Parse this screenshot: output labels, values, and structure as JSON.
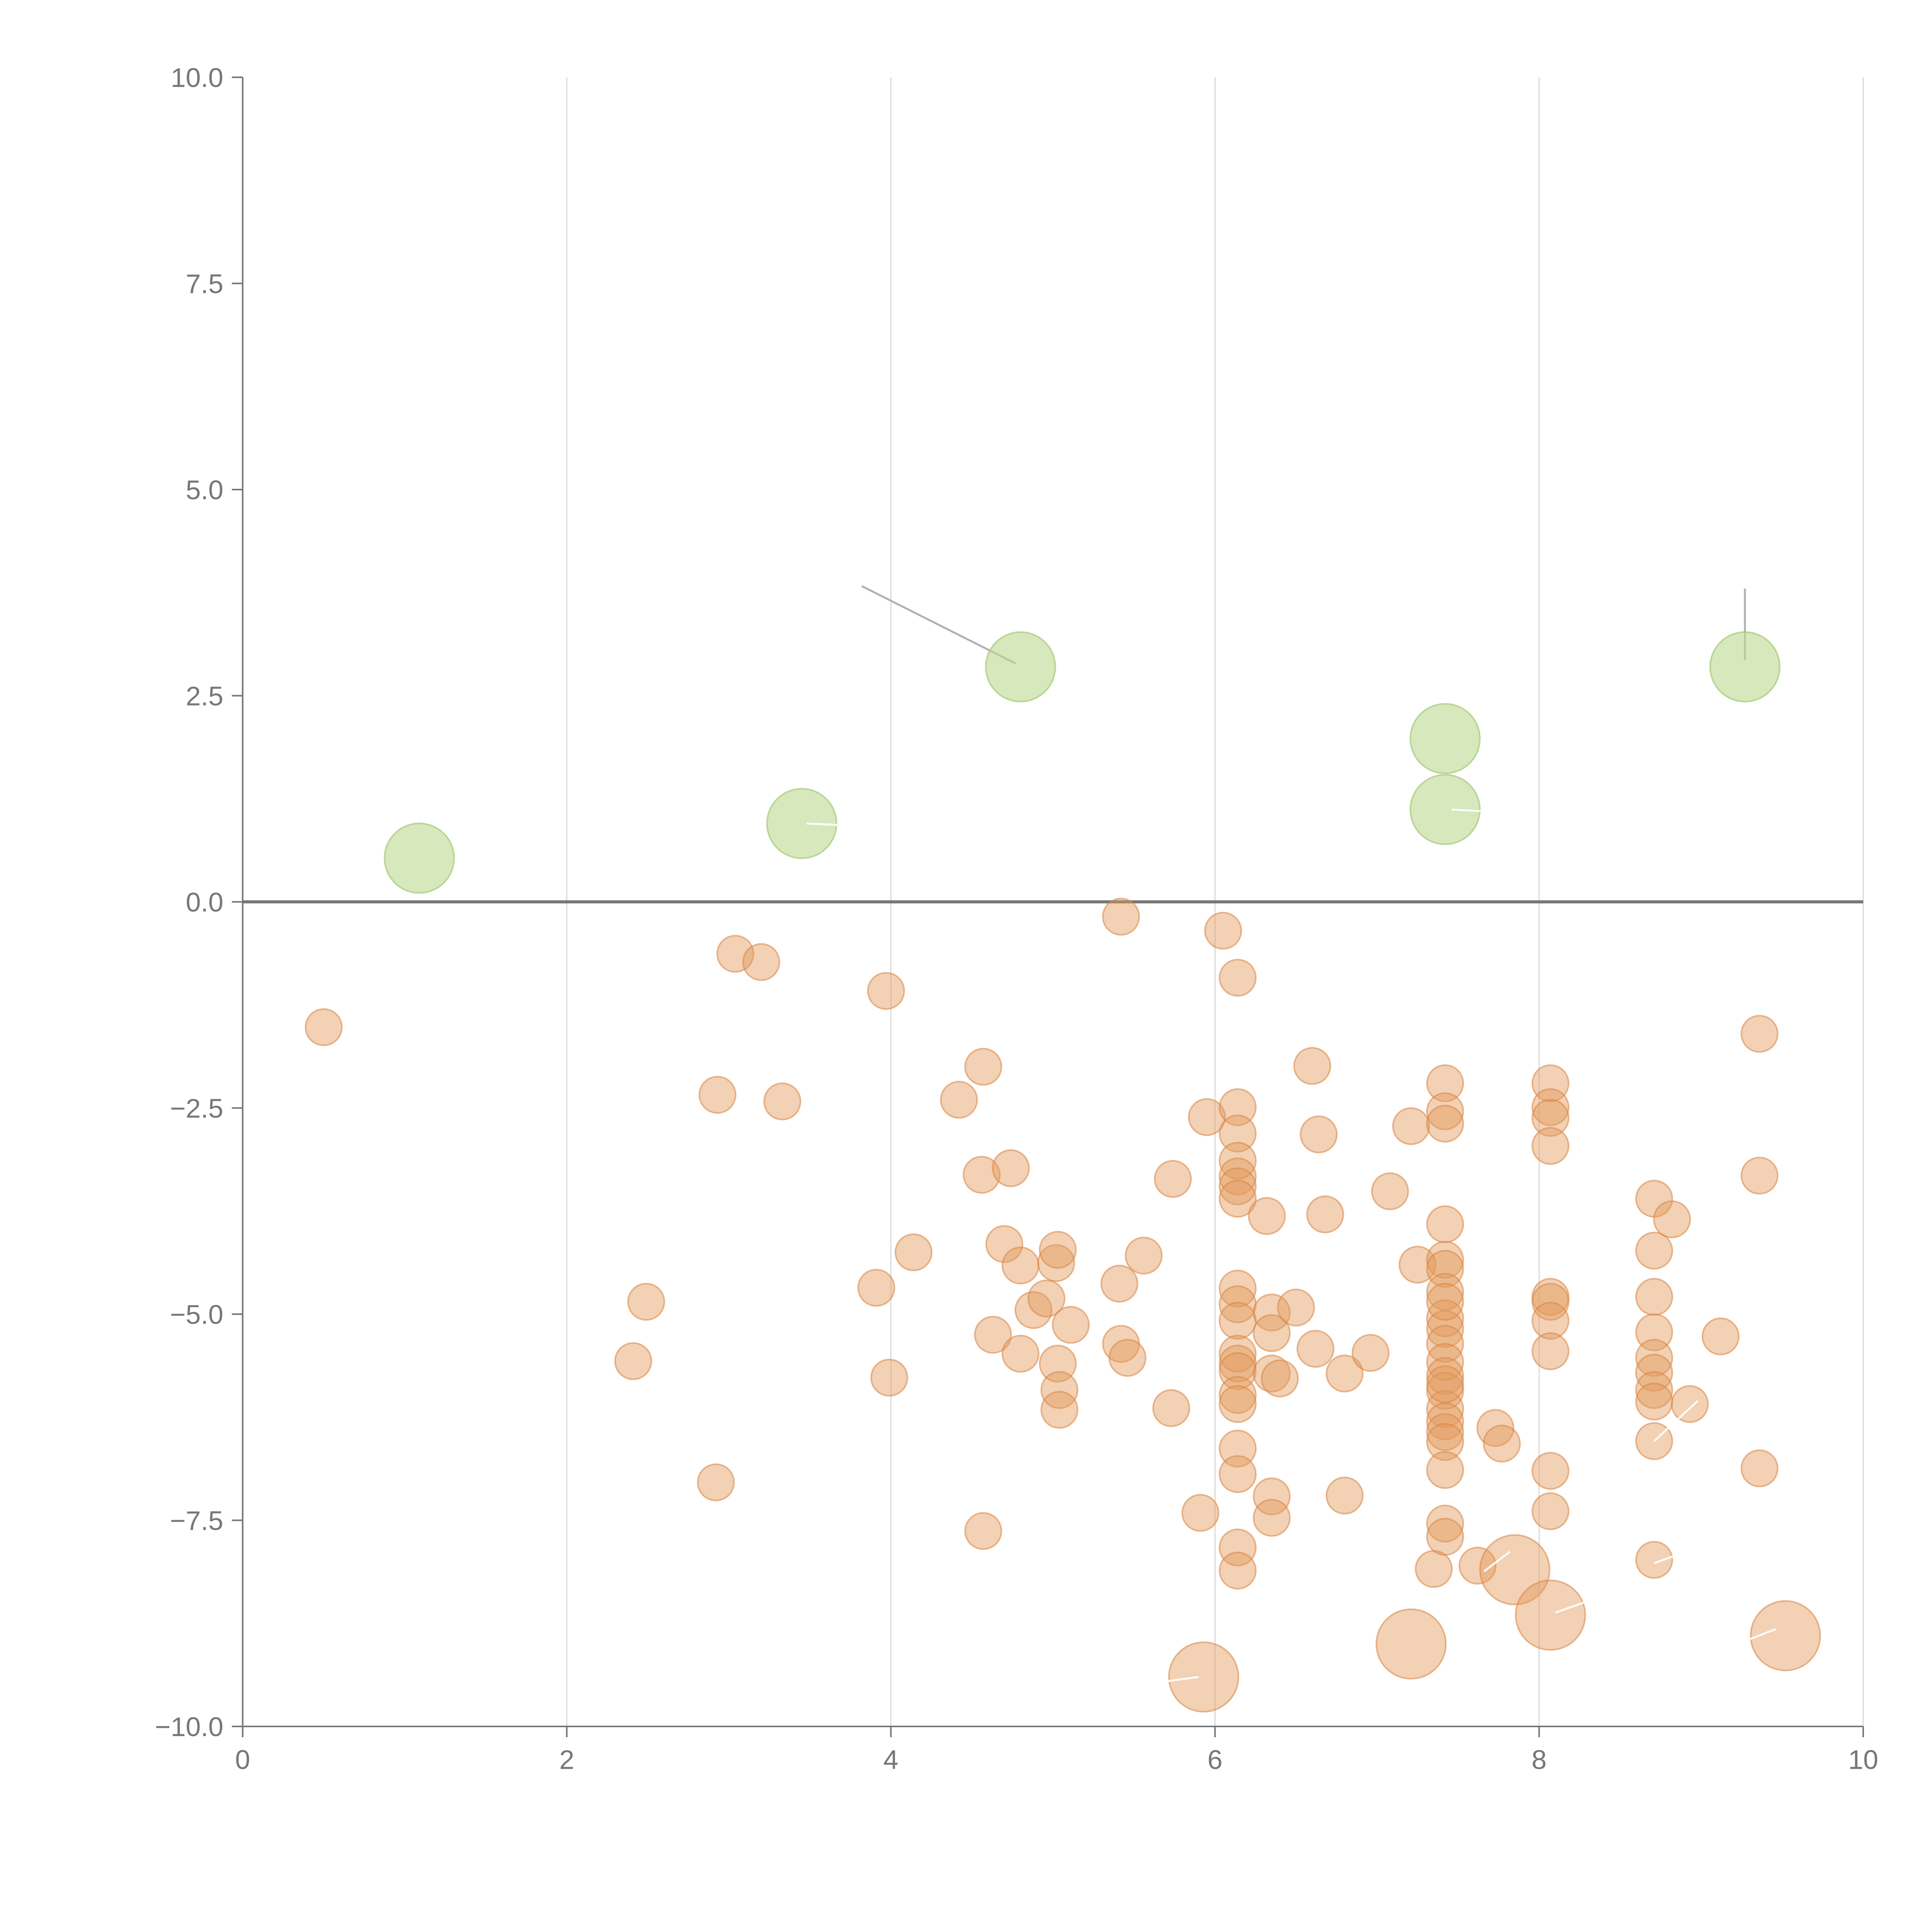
{
  "chart_data": {
    "type": "scatter",
    "subtype": "bubble",
    "title": "",
    "xlabel": "",
    "ylabel": "",
    "xlim": [
      0,
      10
    ],
    "ylim": [
      -10,
      10
    ],
    "xticks": [
      0,
      2,
      4,
      6,
      8,
      10
    ],
    "yticks": [
      -10,
      -7.5,
      -5,
      -2.5,
      0,
      2.5,
      5,
      7.5,
      10
    ],
    "xtick_labels": [
      "0",
      "2",
      "4",
      "6",
      "8",
      "10"
    ],
    "ytick_labels": [
      "−10.0",
      "−7.5",
      "−5.0",
      "−2.5",
      "0.0",
      "2.5",
      "5.0",
      "7.5",
      "10.0"
    ],
    "vertical_grid": true,
    "zero_line": true,
    "colors": {
      "positive": "#bcd98f",
      "negative": "#e39a5c",
      "axis": "#777777",
      "grid": "#d9d9d9"
    },
    "series": [
      {
        "name": "positive",
        "color": "#bcd98f",
        "size": "large",
        "points": [
          [
            1.09,
            0.53
          ],
          [
            3.45,
            0.95
          ],
          [
            4.8,
            2.85
          ],
          [
            7.42,
            1.98
          ],
          [
            7.42,
            1.12
          ],
          [
            9.27,
            2.85
          ]
        ]
      },
      {
        "name": "negative",
        "color": "#e39a5c",
        "size": "small",
        "points": [
          [
            0.5,
            -1.52
          ],
          [
            2.41,
            -5.57
          ],
          [
            2.49,
            -4.85
          ],
          [
            2.92,
            -7.04
          ],
          [
            2.93,
            -2.34
          ],
          [
            3.04,
            -0.63
          ],
          [
            3.2,
            -0.73
          ],
          [
            3.33,
            -2.42
          ],
          [
            3.91,
            -4.68
          ],
          [
            3.97,
            -1.08
          ],
          [
            3.99,
            -5.77
          ],
          [
            4.14,
            -4.25
          ],
          [
            4.42,
            -2.4
          ],
          [
            4.56,
            -3.31
          ],
          [
            4.57,
            -2.0
          ],
          [
            4.57,
            -7.63
          ],
          [
            4.63,
            -5.25
          ],
          [
            4.7,
            -4.15
          ],
          [
            4.74,
            -3.23
          ],
          [
            4.8,
            -5.48
          ],
          [
            4.8,
            -4.41
          ],
          [
            4.88,
            -4.95
          ],
          [
            4.96,
            -4.81
          ],
          [
            5.02,
            -4.38
          ],
          [
            5.03,
            -4.22
          ],
          [
            5.03,
            -5.6
          ],
          [
            5.04,
            -5.92
          ],
          [
            5.04,
            -6.16
          ],
          [
            5.11,
            -5.13
          ],
          [
            5.41,
            -4.63
          ],
          [
            5.42,
            -5.36
          ],
          [
            5.42,
            -0.18
          ],
          [
            5.46,
            -5.53
          ],
          [
            5.56,
            -4.29
          ],
          [
            5.73,
            -6.14
          ],
          [
            5.74,
            -3.36
          ],
          [
            5.91,
            -7.41
          ],
          [
            5.95,
            -2.61
          ],
          [
            6.05,
            -0.35
          ],
          [
            6.14,
            -0.92
          ],
          [
            6.14,
            -2.49
          ],
          [
            6.14,
            -2.81
          ],
          [
            6.14,
            -3.14
          ],
          [
            6.14,
            -3.33
          ],
          [
            6.14,
            -3.45
          ],
          [
            6.14,
            -3.6
          ],
          [
            6.14,
            -4.69
          ],
          [
            6.14,
            -4.88
          ],
          [
            6.14,
            -5.08
          ],
          [
            6.14,
            -5.48
          ],
          [
            6.14,
            -5.6
          ],
          [
            6.14,
            -5.69
          ],
          [
            6.14,
            -5.98
          ],
          [
            6.14,
            -6.09
          ],
          [
            6.14,
            -6.63
          ],
          [
            6.14,
            -6.94
          ],
          [
            6.14,
            -7.83
          ],
          [
            6.14,
            -8.11
          ],
          [
            6.32,
            -3.81
          ],
          [
            6.35,
            -4.98
          ],
          [
            6.35,
            -5.23
          ],
          [
            6.35,
            -7.21
          ],
          [
            6.35,
            -7.47
          ],
          [
            6.35,
            -5.72
          ],
          [
            6.4,
            -5.78
          ],
          [
            6.5,
            -4.92
          ],
          [
            6.6,
            -1.99
          ],
          [
            6.62,
            -5.42
          ],
          [
            6.64,
            -2.82
          ],
          [
            6.68,
            -3.79
          ],
          [
            6.8,
            -5.72
          ],
          [
            6.8,
            -7.2
          ],
          [
            6.96,
            -5.47
          ],
          [
            7.08,
            -3.51
          ],
          [
            7.21,
            -2.72
          ],
          [
            7.25,
            -4.4
          ],
          [
            7.35,
            -8.09
          ],
          [
            7.42,
            -2.2
          ],
          [
            7.42,
            -2.54
          ],
          [
            7.42,
            -2.69
          ],
          [
            7.42,
            -3.91
          ],
          [
            7.42,
            -4.34
          ],
          [
            7.42,
            -4.45
          ],
          [
            7.42,
            -4.73
          ],
          [
            7.42,
            -5.05
          ],
          [
            7.42,
            -5.18
          ],
          [
            7.42,
            -5.36
          ],
          [
            7.42,
            -5.58
          ],
          [
            7.42,
            -5.75
          ],
          [
            7.42,
            -5.93
          ],
          [
            7.42,
            -6.15
          ],
          [
            7.42,
            -6.3
          ],
          [
            7.42,
            -6.43
          ],
          [
            7.42,
            -6.55
          ],
          [
            7.42,
            -6.89
          ],
          [
            7.42,
            -7.54
          ],
          [
            7.42,
            -7.7
          ],
          [
            7.42,
            -5.85
          ],
          [
            7.42,
            -4.85
          ],
          [
            7.62,
            -8.05
          ],
          [
            7.73,
            -6.38
          ],
          [
            7.77,
            -6.57
          ],
          [
            8.07,
            -2.2
          ],
          [
            8.07,
            -2.49
          ],
          [
            8.07,
            -2.62
          ],
          [
            8.07,
            -2.96
          ],
          [
            8.07,
            -4.79
          ],
          [
            8.07,
            -4.85
          ],
          [
            8.07,
            -5.08
          ],
          [
            8.07,
            -5.45
          ],
          [
            8.07,
            -6.9
          ],
          [
            8.07,
            -7.39
          ],
          [
            8.71,
            -3.6
          ],
          [
            8.71,
            -4.23
          ],
          [
            8.71,
            -4.79
          ],
          [
            8.71,
            -5.22
          ],
          [
            8.71,
            -5.53
          ],
          [
            8.71,
            -5.71
          ],
          [
            8.71,
            -5.92
          ],
          [
            8.71,
            -6.06
          ],
          [
            8.71,
            -6.54
          ],
          [
            8.71,
            -7.98
          ],
          [
            8.82,
            -3.85
          ],
          [
            8.93,
            -6.09
          ],
          [
            9.12,
            -5.27
          ],
          [
            9.36,
            -1.6
          ],
          [
            9.36,
            -3.32
          ],
          [
            9.36,
            -6.87
          ]
        ]
      },
      {
        "name": "negative-large",
        "color": "#e39a5c",
        "size": "large",
        "points": [
          [
            5.93,
            -9.4
          ],
          [
            7.21,
            -9.0
          ],
          [
            7.85,
            -8.1
          ],
          [
            8.07,
            -8.65
          ],
          [
            9.52,
            -8.9
          ]
        ]
      }
    ],
    "annotations": [
      {
        "type": "leader-line",
        "from": [
          3.82,
          3.83
        ],
        "to": [
          4.77,
          2.89
        ],
        "color": "#b0b0b0"
      },
      {
        "type": "leader-line",
        "from": [
          9.27,
          3.8
        ],
        "to": [
          9.27,
          2.93
        ],
        "color": "#b0b0b0"
      },
      {
        "type": "leader-line",
        "from": [
          3.48,
          0.95
        ],
        "to": [
          3.7,
          0.93
        ],
        "color": "#ffffff"
      },
      {
        "type": "leader-line",
        "from": [
          7.46,
          1.12
        ],
        "to": [
          7.65,
          1.1
        ],
        "color": "#ffffff"
      },
      {
        "type": "leader-line",
        "from": [
          5.71,
          -9.45
        ],
        "to": [
          5.9,
          -9.4
        ],
        "color": "#ffffff"
      },
      {
        "type": "leader-line",
        "from": [
          7.66,
          -8.12
        ],
        "to": [
          7.82,
          -7.88
        ],
        "color": "#ffffff"
      },
      {
        "type": "leader-line",
        "from": [
          8.1,
          -8.62
        ],
        "to": [
          8.3,
          -8.48
        ],
        "color": "#ffffff"
      },
      {
        "type": "leader-line",
        "from": [
          8.71,
          -6.54
        ],
        "to": [
          8.98,
          -6.05
        ],
        "color": "#ffffff"
      },
      {
        "type": "leader-line",
        "from": [
          8.71,
          -8.02
        ],
        "to": [
          8.88,
          -7.9
        ],
        "color": "#ffffff"
      },
      {
        "type": "leader-line",
        "from": [
          9.25,
          -8.98
        ],
        "to": [
          9.46,
          -8.82
        ],
        "color": "#ffffff"
      }
    ]
  }
}
